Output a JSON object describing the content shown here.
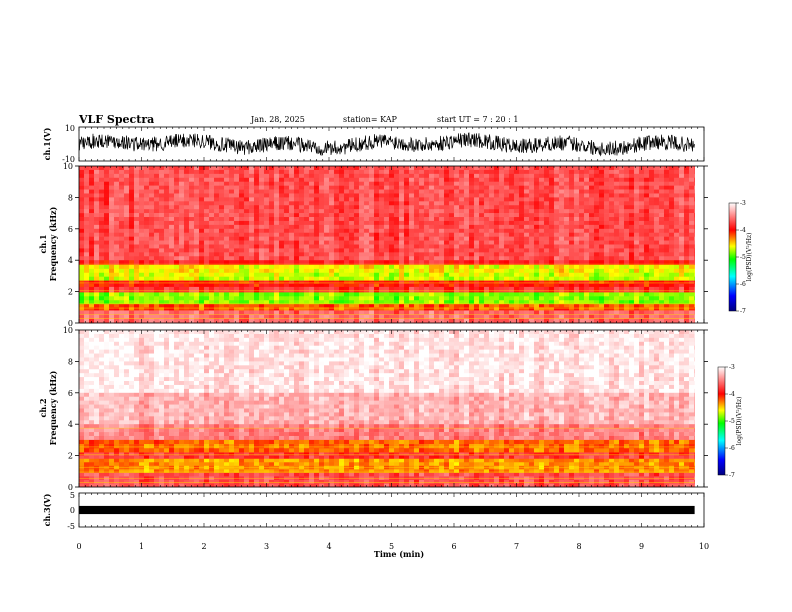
{
  "header": {
    "title": "VLF Spectra",
    "date": "Jan. 28, 2025",
    "station": "station= KAP",
    "start": "start  UT  =   7 : 20 : 1"
  },
  "colors": {
    "spectrum_scale": [
      "#0000ff",
      "#00ffff",
      "#00ff00",
      "#ffff00",
      "#ff0000",
      "#ffffff"
    ],
    "trace": "#000000"
  },
  "chart_data": [
    {
      "type": "line",
      "panel": "ch1-waveform",
      "ylabel": "ch.1(V)",
      "ylim": [
        -10,
        10
      ],
      "yticks": [
        "10",
        "-10"
      ],
      "x_unit": "min",
      "xlim": [
        0,
        10
      ],
      "data_end_min": 9.85,
      "description_of_series": "continuous noisy waveform, envelope roughly between -6 V and +6 V"
    },
    {
      "type": "heatmap",
      "panel": "ch1-spectrogram",
      "ylabel": "ch.1\nFrequency (kHz)",
      "ylim": [
        0,
        10
      ],
      "yticks": [
        "0",
        "2",
        "4",
        "6",
        "8",
        "10"
      ],
      "xlim": [
        0,
        10
      ],
      "data_end_min": 9.85,
      "colorbar": {
        "label": "log(PSD)(V²/Hz)",
        "range": [
          -7,
          -3
        ],
        "ticks": [
          "-3",
          "-4",
          "-5",
          "-6",
          "-7"
        ]
      },
      "bands_kHz": [
        {
          "from": 4.0,
          "to": 10.0,
          "level": -3.7
        },
        {
          "from": 3.7,
          "to": 4.0,
          "level": -3.9
        },
        {
          "from": 3.2,
          "to": 3.7,
          "level": -4.6
        },
        {
          "from": 2.7,
          "to": 3.2,
          "level": -4.7
        },
        {
          "from": 2.3,
          "to": 2.7,
          "level": -4.0
        },
        {
          "from": 1.95,
          "to": 2.3,
          "level": -3.8
        },
        {
          "from": 1.2,
          "to": 1.95,
          "level": -4.85
        },
        {
          "from": 0.8,
          "to": 1.2,
          "level": -4.2
        },
        {
          "from": 0.0,
          "to": 0.8,
          "level": -3.6
        }
      ]
    },
    {
      "type": "heatmap",
      "panel": "ch2-spectrogram",
      "ylabel": "ch.2\nFrequency (kHz)",
      "ylim": [
        0,
        10
      ],
      "yticks": [
        "0",
        "2",
        "4",
        "6",
        "8",
        "10"
      ],
      "xlim": [
        0,
        10
      ],
      "data_end_min": 9.85,
      "colorbar": {
        "label": "log(PSD)(V²/Hz)",
        "range": [
          -7,
          -3
        ],
        "ticks": [
          "-3",
          "-4",
          "-5",
          "-6",
          "-7"
        ]
      },
      "bands_kHz": [
        {
          "from": 6.0,
          "to": 10.0,
          "level": -3.1
        },
        {
          "from": 4.0,
          "to": 6.0,
          "level": -3.3
        },
        {
          "from": 3.0,
          "to": 4.0,
          "level": -3.5
        },
        {
          "from": 2.2,
          "to": 3.0,
          "level": -4.25
        },
        {
          "from": 1.8,
          "to": 2.2,
          "level": -3.8
        },
        {
          "from": 0.9,
          "to": 1.8,
          "level": -4.35
        },
        {
          "from": 0.0,
          "to": 0.9,
          "level": -3.7
        }
      ]
    },
    {
      "type": "line",
      "panel": "ch3-waveform",
      "ylabel": "ch.3(V)",
      "ylim": [
        -5,
        5
      ],
      "yticks": [
        "5",
        "0",
        "-5"
      ],
      "xlabel": "Time  (min)",
      "xlim": [
        0,
        10
      ],
      "xticks": [
        "0",
        "1",
        "2",
        "3",
        "4",
        "5",
        "6",
        "7",
        "8",
        "9",
        "10"
      ],
      "data_end_min": 9.85,
      "description_of_series": "narrow dense band centered near 0 V"
    }
  ]
}
